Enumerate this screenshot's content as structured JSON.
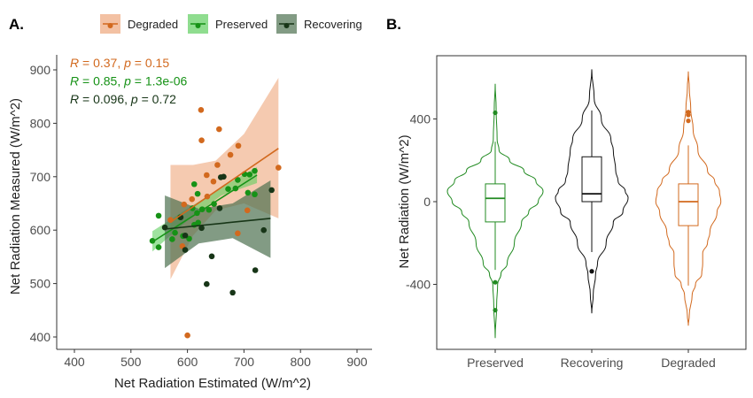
{
  "chart_data": [
    {
      "panel_label": "A.",
      "type": "scatter",
      "xlabel": "Net Radiation Estimated (W/m^2)",
      "ylabel": "Net Radiation Measured (W/m^2)",
      "xlim": [
        380,
        920
      ],
      "ylim": [
        378,
        925
      ],
      "xticks": [
        400,
        500,
        600,
        700,
        800,
        900
      ],
      "yticks": [
        400,
        500,
        600,
        700,
        800,
        900
      ],
      "grid": false,
      "legend": {
        "placement": "top",
        "entries": [
          "Degraded",
          "Preserved",
          "Recovering"
        ]
      },
      "annotations": [
        {
          "series": "Degraded",
          "r_label": "R",
          "r_text": " = 0.37, ",
          "p_label": "p",
          "p_text": " = 0.15"
        },
        {
          "series": "Preserved",
          "r_label": "R",
          "r_text": " = 0.85, ",
          "p_label": "p",
          "p_text": " = 1.3e-06"
        },
        {
          "series": "Recovering",
          "r_label": "R",
          "r_text": " = 0.096, ",
          "p_label": "p",
          "p_text": " = 0.72"
        }
      ],
      "series": [
        {
          "name": "Degraded",
          "color": "#d2691e",
          "ribbon_color": "#eea77c",
          "points": [
            [
              624,
              825
            ],
            [
              656,
              789
            ],
            [
              625,
              768
            ],
            [
              690,
              758
            ],
            [
              676,
              741
            ],
            [
              653,
              722
            ],
            [
              761,
              717
            ],
            [
              634,
              703
            ],
            [
              646,
              691
            ],
            [
              608,
              658
            ],
            [
              635,
              663
            ],
            [
              594,
              648
            ],
            [
              570,
              619
            ],
            [
              706,
              637
            ],
            [
              689,
              594
            ],
            [
              591,
              570
            ],
            [
              600,
              403
            ]
          ],
          "fit": [
            [
              570,
              615
            ],
            [
              761,
              753
            ]
          ],
          "band": {
            "x": [
              570,
              610,
              650,
              700,
              761
            ],
            "upper": [
              722,
              722,
              730,
              780,
              885
            ],
            "lower": [
              508,
              590,
              637,
              650,
              622
            ]
          }
        },
        {
          "name": "Preserved",
          "color": "#169216",
          "ribbon_color": "#5fcf5f",
          "points": [
            [
              549,
              627
            ],
            [
              538,
              580
            ],
            [
              549,
              568
            ],
            [
              612,
              686
            ],
            [
              618,
              668
            ],
            [
              609,
              641
            ],
            [
              587,
              624
            ],
            [
              617,
              632
            ],
            [
              626,
              639
            ],
            [
              638,
              638
            ],
            [
              647,
              649
            ],
            [
              672,
              677
            ],
            [
              685,
              678
            ],
            [
              689,
              694
            ],
            [
              701,
              705
            ],
            [
              710,
              704
            ],
            [
              719,
              711
            ],
            [
              707,
              670
            ],
            [
              719,
              667
            ],
            [
              603,
              584
            ],
            [
              573,
              583
            ],
            [
              612,
              610
            ],
            [
              619,
              614
            ],
            [
              578,
              595
            ],
            [
              592,
              589
            ]
          ],
          "fit": [
            [
              538,
              578
            ],
            [
              723,
              703
            ]
          ],
          "band": {
            "x": [
              538,
              600,
              660,
              723
            ],
            "upper": [
              598,
              640,
              680,
              718
            ],
            "lower": [
              560,
              618,
              665,
              688
            ]
          }
        },
        {
          "name": "Recovering",
          "color": "#173517",
          "ribbon_color": "#4d7050",
          "points": [
            [
              659,
              699
            ],
            [
              664,
              700
            ],
            [
              749,
              675
            ],
            [
              560,
              605
            ],
            [
              625,
              604
            ],
            [
              657,
              641
            ],
            [
              735,
              600
            ],
            [
              596,
              563
            ],
            [
              643,
              551
            ],
            [
              720,
              525
            ],
            [
              634,
              499
            ],
            [
              680,
              483
            ],
            [
              588,
              624
            ],
            [
              596,
              590
            ]
          ],
          "fit": [
            [
              560,
              602
            ],
            [
              747,
              622
            ]
          ],
          "band": {
            "x": [
              560,
              620,
              680,
              747
            ],
            "upper": [
              665,
              640,
              650,
              693
            ],
            "lower": [
              529,
              575,
              585,
              548
            ]
          }
        }
      ]
    },
    {
      "panel_label": "B.",
      "type": "violin",
      "xlabel": "",
      "ylabel": "Net Radiation (W/m^2)",
      "ylim": [
        -720,
        700
      ],
      "yticks": [
        400,
        0,
        -400
      ],
      "categories": [
        "Preserved",
        "Recovering",
        "Degraded"
      ],
      "series": [
        {
          "name": "Preserved",
          "color": "#228b22",
          "box": {
            "whisker_low": -330,
            "q1": -98,
            "median": 16,
            "q3": 86,
            "whisker_high": 290
          },
          "outliers": [
            430,
            -390,
            -525
          ],
          "density": [
            [
              570,
              0
            ],
            [
              450,
              0.02
            ],
            [
              300,
              0.04
            ],
            [
              250,
              0.08
            ],
            [
              200,
              0.3
            ],
            [
              150,
              0.6
            ],
            [
              100,
              0.85
            ],
            [
              50,
              1.0
            ],
            [
              0,
              0.9
            ],
            [
              -50,
              0.7
            ],
            [
              -100,
              0.55
            ],
            [
              -200,
              0.4
            ],
            [
              -300,
              0.25
            ],
            [
              -350,
              0.12
            ],
            [
              -400,
              0.05
            ],
            [
              -500,
              0.03
            ],
            [
              -660,
              0
            ]
          ]
        },
        {
          "name": "Recovering",
          "color": "#111111",
          "box": {
            "whisker_low": -244,
            "q1": 0,
            "median": 38,
            "q3": 217,
            "whisker_high": 441
          },
          "outliers": [
            -337
          ],
          "density": [
            [
              640,
              0
            ],
            [
              500,
              0.05
            ],
            [
              400,
              0.2
            ],
            [
              300,
              0.4
            ],
            [
              250,
              0.45
            ],
            [
              150,
              0.5
            ],
            [
              100,
              0.55
            ],
            [
              50,
              0.7
            ],
            [
              20,
              0.76
            ],
            [
              -50,
              0.65
            ],
            [
              -100,
              0.45
            ],
            [
              -200,
              0.3
            ],
            [
              -300,
              0.12
            ],
            [
              -350,
              0.08
            ],
            [
              -450,
              0.03
            ],
            [
              -540,
              0
            ]
          ]
        },
        {
          "name": "Degraded",
          "color": "#d2691e",
          "box": {
            "whisker_low": -406,
            "q1": -116,
            "median": 0,
            "q3": 86,
            "whisker_high": 272
          },
          "outliers": [
            433,
            419,
            391
          ],
          "density": [
            [
              630,
              0
            ],
            [
              550,
              0.02
            ],
            [
              450,
              0.05
            ],
            [
              350,
              0.1
            ],
            [
              250,
              0.2
            ],
            [
              150,
              0.4
            ],
            [
              100,
              0.55
            ],
            [
              50,
              0.65
            ],
            [
              0,
              0.68
            ],
            [
              -50,
              0.6
            ],
            [
              -150,
              0.45
            ],
            [
              -200,
              0.4
            ],
            [
              -250,
              0.3
            ],
            [
              -300,
              0.3
            ],
            [
              -350,
              0.28
            ],
            [
              -400,
              0.15
            ],
            [
              -450,
              0.08
            ],
            [
              -550,
              0.02
            ],
            [
              -600,
              0
            ]
          ]
        }
      ]
    }
  ]
}
